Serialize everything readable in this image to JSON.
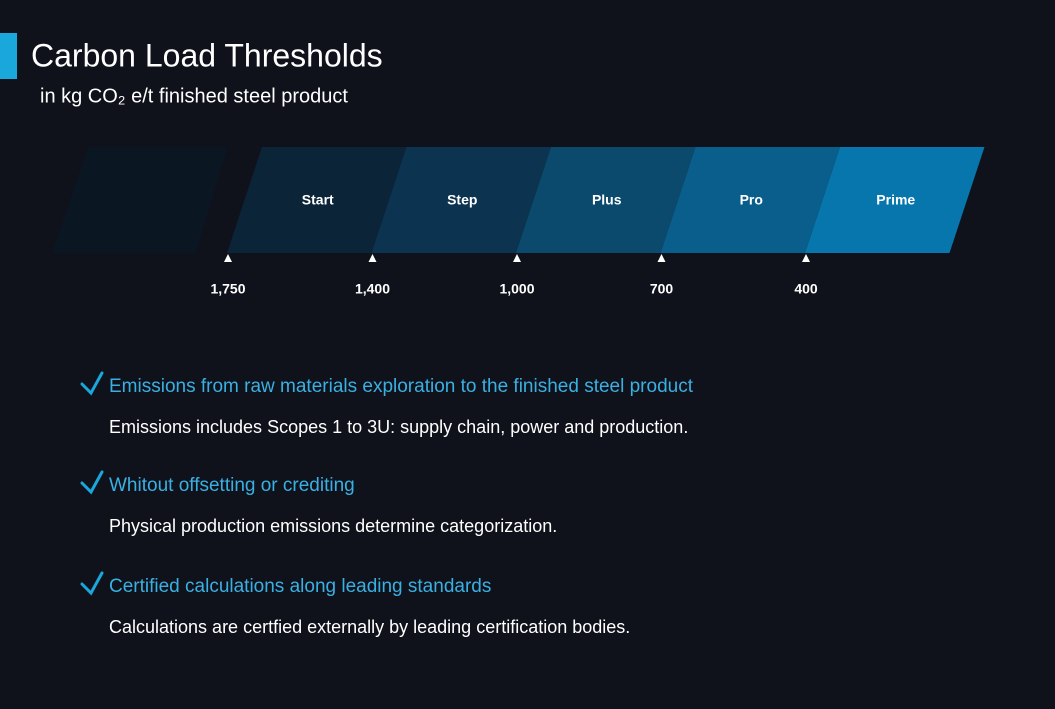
{
  "header": {
    "title": "Carbon Load Thresholds",
    "subtitle": "in kg CO₂ e/t finished steel product"
  },
  "tiers": [
    "Start",
    "Step",
    "Plus",
    "Pro",
    "Prime"
  ],
  "thresholds": [
    "1,750",
    "1,400",
    "1,000",
    "700",
    "400"
  ],
  "items": [
    {
      "heading": "Emissions from raw materials exploration to the finished steel product",
      "text": "Emissions includes Scopes 1 to 3U: supply chain, power and production."
    },
    {
      "heading": "Whitout offsetting or crediting",
      "text": "Physical production emissions determine categorization."
    },
    {
      "heading": "Certified calculations along leading standards",
      "text": "Calculations are certfied externally by leading certification bodies."
    }
  ]
}
